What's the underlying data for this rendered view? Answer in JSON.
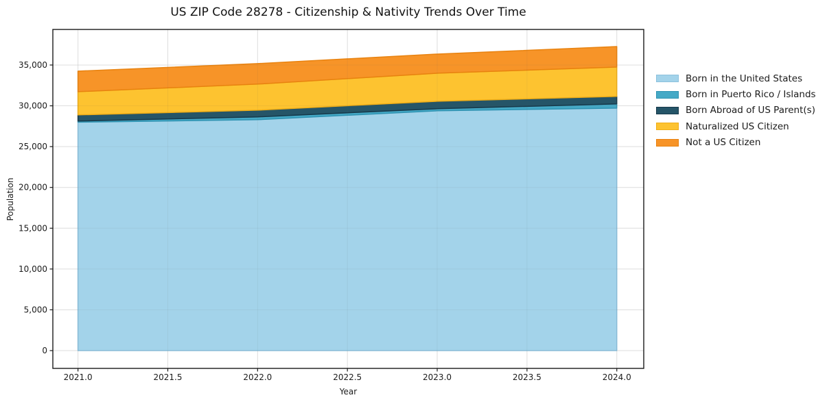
{
  "window": {
    "title": "US ZIP Code 28278 - Citizenship & Nativity Trends Over Time"
  },
  "chart_data": {
    "type": "area",
    "stacked": true,
    "title": "US ZIP Code 28278 - Citizenship & Nativity Trends Over Time",
    "xlabel": "Year",
    "ylabel": "Population",
    "x": [
      2021,
      2022,
      2023,
      2024
    ],
    "series": [
      {
        "name": "Born in the United States",
        "color": "#a3d3ea",
        "edge": "#8cc1dd",
        "values": [
          28000,
          28300,
          29390,
          29720
        ]
      },
      {
        "name": "Born in Puerto Rico / Islands",
        "color": "#45a9c6",
        "edge": "#2f93b2",
        "values": [
          130,
          340,
          250,
          510
        ]
      },
      {
        "name": "Born Abroad of US Parent(s)",
        "color": "#255568",
        "edge": "#17394a",
        "values": [
          760,
          830,
          920,
          920
        ]
      },
      {
        "name": "Naturalized US Citizen",
        "color": "#fdc330",
        "edge": "#efad17",
        "values": [
          2840,
          3190,
          3440,
          3600
        ]
      },
      {
        "name": "Not a US Citizen",
        "color": "#f79428",
        "edge": "#e8820f",
        "values": [
          2520,
          2510,
          2340,
          2510
        ]
      }
    ],
    "stacked_totals": [
      34250,
      35170,
      36340,
      37260
    ],
    "xlim": [
      2020.86,
      2024.15
    ],
    "ylim": [
      -2180,
      39360
    ],
    "grid": true,
    "legend_position": "right",
    "x_ticks": {
      "values": [
        2021,
        2021.5,
        2022,
        2022.5,
        2023,
        2023.5,
        2024
      ],
      "labels": [
        "2021.0",
        "2021.5",
        "2022.0",
        "2022.5",
        "2023.0",
        "2023.5",
        "2024.0"
      ]
    },
    "y_ticks": {
      "values": [
        0,
        5000,
        10000,
        15000,
        20000,
        25000,
        30000,
        35000
      ],
      "labels": [
        "0",
        "5,000",
        "10,000",
        "15,000",
        "20,000",
        "25,000",
        "30,000",
        "35,000"
      ]
    }
  }
}
